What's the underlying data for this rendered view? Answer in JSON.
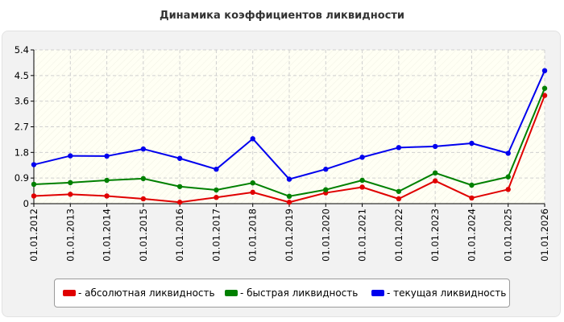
{
  "chart_data": {
    "type": "line",
    "title": "Динамика коэффициентов ликвидности",
    "categories": [
      "01.01.2012",
      "01.01.2013",
      "01.01.2014",
      "01.01.2015",
      "01.01.2016",
      "01.01.2017",
      "01.01.2018",
      "01.01.2019",
      "01.01.2020",
      "01.01.2021",
      "01.01.2022",
      "01.01.2023",
      "01.01.2024",
      "01.01.2025",
      "01.01.2026"
    ],
    "yticks": [
      "0",
      "0.9",
      "1.8",
      "2.7",
      "3.6",
      "4.5",
      "5.4"
    ],
    "ylim": [
      0,
      5.4
    ],
    "grid": true,
    "legend_position": "bottom",
    "series": [
      {
        "name": "- абсолютная ликвидность",
        "color": "#e00000",
        "values": [
          0.27,
          0.33,
          0.27,
          0.17,
          0.05,
          0.22,
          0.4,
          0.05,
          0.38,
          0.58,
          0.17,
          0.8,
          0.2,
          0.5,
          3.8
        ]
      },
      {
        "name": "- быстрая ликвидность",
        "color": "#008000",
        "values": [
          0.68,
          0.74,
          0.82,
          0.88,
          0.6,
          0.48,
          0.73,
          0.26,
          0.49,
          0.82,
          0.43,
          1.08,
          0.65,
          0.94,
          4.05
        ]
      },
      {
        "name": "- текущая ликвидность",
        "color": "#0000ee",
        "values": [
          1.37,
          1.68,
          1.67,
          1.92,
          1.59,
          1.21,
          2.28,
          0.86,
          1.21,
          1.63,
          1.97,
          2.01,
          2.12,
          1.77,
          4.67
        ]
      }
    ]
  }
}
